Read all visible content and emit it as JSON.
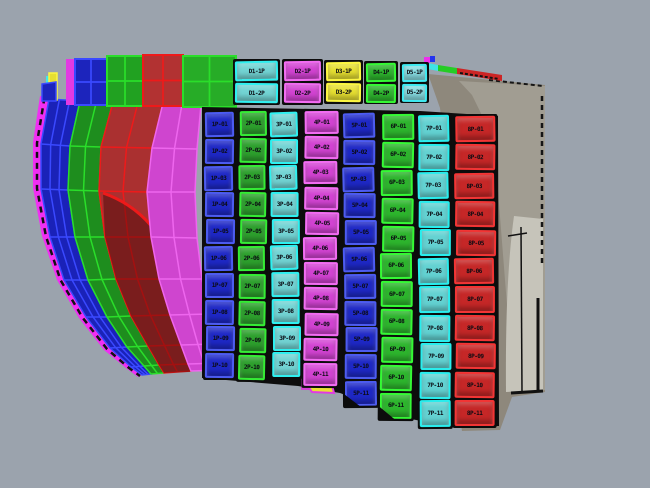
{
  "viewport": {
    "background": "#9ba3ad",
    "wireframe_color": "#111111",
    "transom_colors": {
      "dark": "#8e887c",
      "mid": "#a19d92",
      "light": "#c6c4ba"
    }
  },
  "palette": {
    "blue": {
      "fill": "#1e28c6",
      "edge": "#4d5cf0"
    },
    "green_a": {
      "fill": "#2da02d",
      "edge": "#35ec35"
    },
    "green_b": {
      "fill": "#2db52d",
      "edge": "#35f935"
    },
    "cyan_a": {
      "fill": "#72d4d4",
      "edge": "#2ff0f0"
    },
    "cyan_b": {
      "fill": "#63d2d2",
      "edge": "#29eded"
    },
    "magenta": {
      "fill": "#d243d2",
      "edge": "#f26df2"
    },
    "red": {
      "fill": "#c52727",
      "edge": "#f23535"
    },
    "yellow": {
      "fill": "#e6df31",
      "edge": "#fbf642"
    },
    "ltcyan": {
      "fill": "#86dce2",
      "edge": "#3fe9f0"
    }
  },
  "strake_colors": {
    "rim_magenta": {
      "fill": "#f02ff2",
      "grid": "#111111"
    },
    "blue": {
      "fill": "#1a22b8",
      "grid": "#3a49ff"
    },
    "green": {
      "fill": "#1e8d1e",
      "grid": "#2ade2a"
    },
    "red": {
      "fill": "#aa3030",
      "grid": "#ee1a1a"
    },
    "magenta": {
      "fill": "#cf45cf",
      "grid": "#ee66ee"
    }
  },
  "top_row_blocks": [
    {
      "name": "deck-block-cyan",
      "color": "cyan_a",
      "labels": [
        "D1-1P",
        "D1-2P"
      ]
    },
    {
      "name": "deck-block-magenta",
      "color": "magenta",
      "labels": [
        "D2-1P",
        "D2-2P"
      ]
    },
    {
      "name": "deck-block-yellow",
      "color": "yellow",
      "labels": [
        "D3-1P",
        "D3-2P"
      ]
    },
    {
      "name": "deck-block-green",
      "color": "green_b",
      "labels": [
        "D4-1P",
        "D4-2P"
      ]
    },
    {
      "name": "deck-block-ltcyan",
      "color": "ltcyan",
      "labels": [
        "D5-1P",
        "D5-2P"
      ]
    }
  ],
  "plate_columns": [
    {
      "name": "plate-column-1-blue",
      "color": "blue",
      "labels": [
        "1P-01",
        "1P-02",
        "1P-03",
        "1P-04",
        "1P-05",
        "1P-06",
        "1P-07",
        "1P-08",
        "1P-09",
        "1P-10"
      ]
    },
    {
      "name": "plate-column-2-green",
      "color": "green_a",
      "labels": [
        "2P-01",
        "2P-02",
        "2P-03",
        "2P-04",
        "2P-05",
        "2P-06",
        "2P-07",
        "2P-08",
        "2P-09",
        "2P-10"
      ]
    },
    {
      "name": "plate-column-3-cyan",
      "color": "cyan_a",
      "labels": [
        "3P-01",
        "3P-02",
        "3P-03",
        "3P-04",
        "3P-05",
        "3P-06",
        "3P-07",
        "3P-08",
        "3P-09",
        "3P-10"
      ]
    },
    {
      "name": "plate-column-4-magenta",
      "color": "magenta",
      "labels": [
        "4P-01",
        "4P-02",
        "4P-03",
        "4P-04",
        "4P-05",
        "4P-06",
        "4P-07",
        "4P-08",
        "4P-09",
        "4P-10",
        "4P-11"
      ]
    },
    {
      "name": "plate-column-5-blue",
      "color": "blue",
      "labels": [
        "5P-01",
        "5P-02",
        "5P-03",
        "5P-04",
        "5P-05",
        "5P-06",
        "5P-07",
        "5P-08",
        "5P-09",
        "5P-10",
        "5P-11"
      ]
    },
    {
      "name": "plate-column-6-green",
      "color": "green_b",
      "labels": [
        "6P-01",
        "6P-02",
        "6P-03",
        "6P-04",
        "6P-05",
        "6P-06",
        "6P-07",
        "6P-08",
        "6P-09",
        "6P-10",
        "6P-11"
      ]
    },
    {
      "name": "plate-column-7-cyan",
      "color": "cyan_b",
      "labels": [
        "7P-01",
        "7P-02",
        "7P-03",
        "7P-04",
        "7P-05",
        "7P-06",
        "7P-07",
        "7P-08",
        "7P-09",
        "7P-10",
        "7P-11"
      ]
    },
    {
      "name": "plate-column-8-red",
      "color": "red",
      "labels": [
        "8P-01",
        "8P-02",
        "8P-03",
        "8P-04",
        "8P-05",
        "8P-06",
        "8P-07",
        "8P-08",
        "8P-09",
        "8P-10",
        "8P-11"
      ]
    }
  ]
}
